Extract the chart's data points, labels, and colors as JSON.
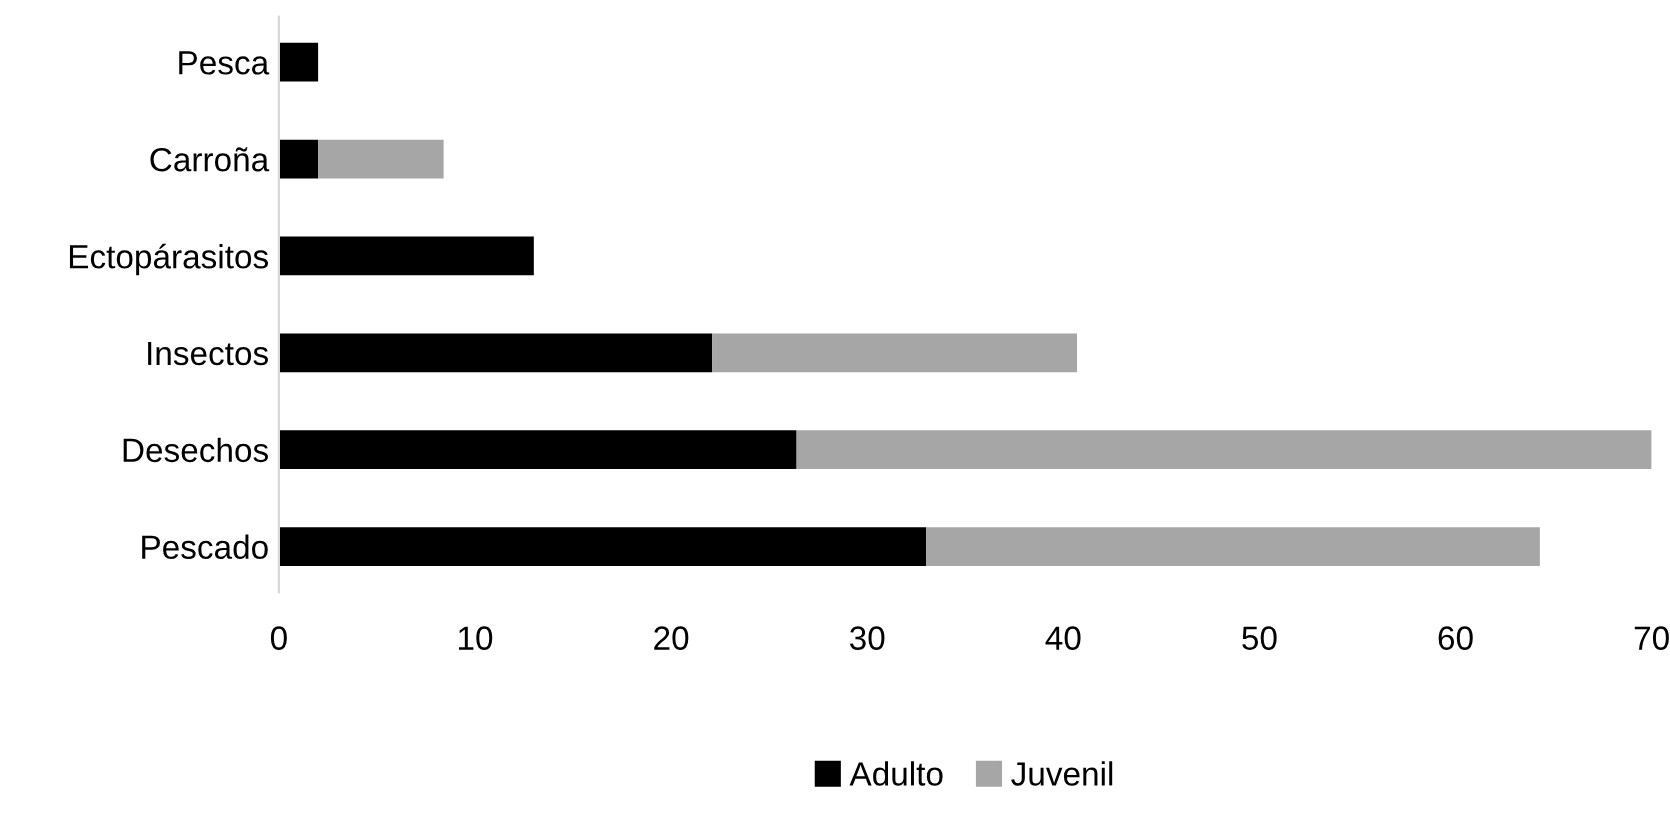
{
  "chart_data": {
    "type": "bar",
    "orientation": "horizontal",
    "stacked": true,
    "categories": [
      "Pesca",
      "Carroña",
      "Ectopárasitos",
      "Insectos",
      "Desechos",
      "Pescado"
    ],
    "series": [
      {
        "name": "Adulto",
        "color": "#000000",
        "values": [
          2.0,
          2.0,
          13.0,
          22.1,
          26.4,
          33.0
        ]
      },
      {
        "name": "Juvenil",
        "color": "#a6a6a6",
        "values": [
          null,
          6.4,
          null,
          18.6,
          43.6,
          31.3
        ]
      }
    ],
    "xlim": [
      0,
      70
    ],
    "xticks": [
      0,
      10,
      20,
      30,
      40,
      50,
      60,
      70
    ],
    "grid": false,
    "legend": "bottom"
  }
}
